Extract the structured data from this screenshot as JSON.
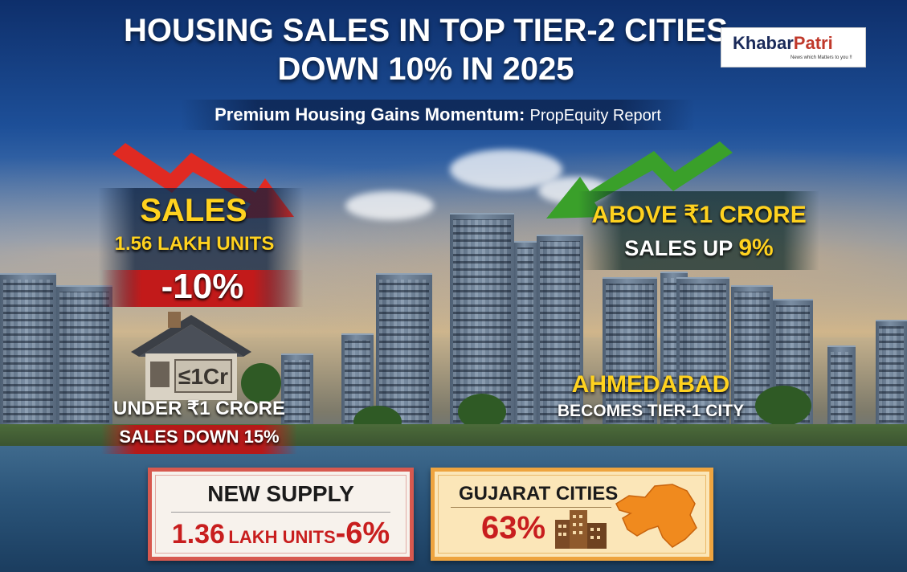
{
  "header": {
    "title_line1": "HOUSING SALES IN TOP TIER-2 CITIES",
    "title_line2": "DOWN 10% IN 2025",
    "subtitle_main": "Premium Housing Gains Momentum:",
    "subtitle_source": "PropEquity Report"
  },
  "logo": {
    "name_part1": "Khabar",
    "name_part2": "Patri",
    "tagline": "News which Matters to you !!"
  },
  "sales": {
    "title": "SALES",
    "units": "1.56 LAKH UNITS",
    "change": "-10%",
    "arrow_color": "#e02a22"
  },
  "premium": {
    "line1": "ABOVE ₹1 CRORE",
    "line2_prefix": "SALES UP",
    "line2_pct": "9%",
    "arrow_color": "#3aa02a"
  },
  "house_sign": {
    "text": "≤1Cr"
  },
  "under_1cr": {
    "line1": "UNDER ₹1 CRORE",
    "line2": "SALES DOWN 15%"
  },
  "ahmedabad": {
    "line1": "AHMEDABAD",
    "line2": "BECOMES TIER-1 CITY"
  },
  "new_supply": {
    "title": "NEW SUPPLY",
    "value": "1.36",
    "unit": "LAKH UNITS",
    "change": "-6%"
  },
  "gujarat": {
    "title": "GUJARAT CITIES",
    "share": "63%",
    "map_color": "#f08a1e"
  }
}
